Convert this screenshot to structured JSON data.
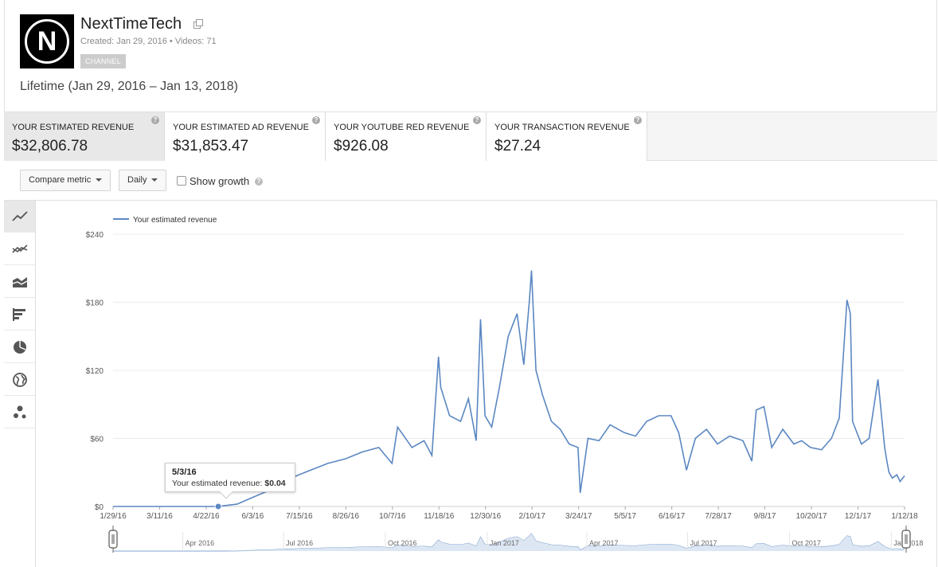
{
  "channel": {
    "name": "NextTimeTech",
    "avatar_letter": "N",
    "meta": "Created: Jan 29, 2016  •  Videos: 71",
    "badge": "CHANNEL"
  },
  "date_range": "Lifetime (Jan 29, 2016 – Jan 13, 2018)",
  "metrics": [
    {
      "label": "YOUR ESTIMATED REVENUE",
      "value": "$32,806.78"
    },
    {
      "label": "YOUR ESTIMATED AD REVENUE",
      "value": "$31,853.47"
    },
    {
      "label": "YOUR YOUTUBE RED REVENUE",
      "value": "$926.08"
    },
    {
      "label": "YOUR TRANSACTION REVENUE",
      "value": "$27.24"
    }
  ],
  "controls": {
    "compare_metric": "Compare metric",
    "interval": "Daily",
    "show_growth": "Show growth"
  },
  "sidebar_icons": [
    "line-chart-icon",
    "multi-line-chart-icon",
    "stacked-area-icon",
    "bar-chart-icon",
    "pie-chart-icon",
    "map-icon",
    "bubble-chart-icon"
  ],
  "tooltip": {
    "date": "5/3/16",
    "label": "Your estimated revenue:",
    "value": "$0.04"
  },
  "colors": {
    "series": "#5b87c2",
    "grid": "#ececec"
  },
  "chart_data": {
    "type": "line",
    "legend": "Your estimated revenue",
    "y_ticks": [
      "$0",
      "$60",
      "$120",
      "$180",
      "$240"
    ],
    "ylim": [
      0,
      240
    ],
    "x_ticks": [
      "1/29/16",
      "3/11/16",
      "4/22/16",
      "6/3/16",
      "7/15/16",
      "8/26/16",
      "10/7/16",
      "11/18/16",
      "12/30/16",
      "2/10/17",
      "3/24/17",
      "5/5/17",
      "6/16/17",
      "7/28/17",
      "9/8/17",
      "10/20/17",
      "12/1/17",
      "1/12/18"
    ],
    "navigator_ticks": [
      "Apr 2016",
      "Jul 2016",
      "Oct 2016",
      "Jan 2017",
      "Apr 2017",
      "Jul 2017",
      "Oct 2017",
      "Jan 2018"
    ],
    "x": [
      "2016-01-29",
      "2016-03-11",
      "2016-04-22",
      "2016-05-03",
      "2016-05-20",
      "2016-06-03",
      "2016-06-20",
      "2016-07-01",
      "2016-07-15",
      "2016-07-28",
      "2016-08-10",
      "2016-08-26",
      "2016-09-10",
      "2016-09-25",
      "2016-10-07",
      "2016-10-12",
      "2016-10-25",
      "2016-11-05",
      "2016-11-12",
      "2016-11-18",
      "2016-11-20",
      "2016-11-28",
      "2016-12-08",
      "2016-12-15",
      "2016-12-22",
      "2016-12-26",
      "2016-12-30",
      "2017-01-05",
      "2017-01-12",
      "2017-01-20",
      "2017-01-28",
      "2017-02-03",
      "2017-02-08",
      "2017-02-10",
      "2017-02-14",
      "2017-02-20",
      "2017-02-28",
      "2017-03-08",
      "2017-03-16",
      "2017-03-24",
      "2017-03-26",
      "2017-04-02",
      "2017-04-12",
      "2017-04-22",
      "2017-05-05",
      "2017-05-15",
      "2017-05-25",
      "2017-06-05",
      "2017-06-16",
      "2017-06-23",
      "2017-06-30",
      "2017-07-08",
      "2017-07-18",
      "2017-07-28",
      "2017-08-08",
      "2017-08-20",
      "2017-08-28",
      "2017-09-01",
      "2017-09-08",
      "2017-09-15",
      "2017-09-25",
      "2017-10-05",
      "2017-10-12",
      "2017-10-20",
      "2017-10-30",
      "2017-11-08",
      "2017-11-15",
      "2017-11-22",
      "2017-11-25",
      "2017-11-27",
      "2017-12-01",
      "2017-12-05",
      "2017-12-12",
      "2017-12-20",
      "2017-12-26",
      "2017-12-28",
      "2017-12-30",
      "2018-01-02",
      "2018-01-06",
      "2018-01-09",
      "2018-01-13"
    ],
    "values": [
      0,
      0,
      0,
      0.04,
      2,
      8,
      15,
      22,
      28,
      33,
      38,
      42,
      48,
      52,
      38,
      70,
      52,
      58,
      45,
      132,
      105,
      80,
      75,
      95,
      58,
      165,
      80,
      70,
      105,
      150,
      170,
      125,
      180,
      208,
      120,
      98,
      75,
      68,
      55,
      52,
      12,
      60,
      58,
      72,
      65,
      62,
      75,
      80,
      80,
      65,
      32,
      60,
      68,
      55,
      62,
      58,
      40,
      85,
      88,
      52,
      68,
      55,
      58,
      52,
      50,
      60,
      78,
      182,
      170,
      75,
      65,
      55,
      60,
      112,
      52,
      40,
      30,
      25,
      28,
      22,
      27
    ]
  }
}
